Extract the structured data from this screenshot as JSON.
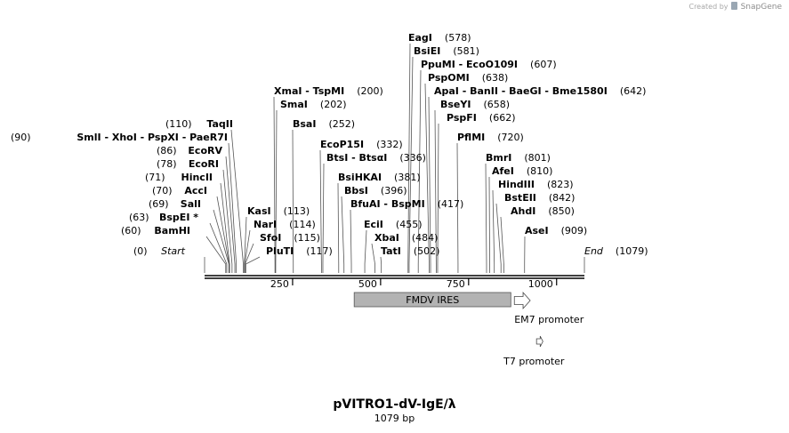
{
  "credit": {
    "prefix": "Created by",
    "brand": "SnapGene"
  },
  "plasmid": {
    "name": "pVITRO1-dV-IgE/λ",
    "length_label": "1079 bp",
    "length": 1079
  },
  "sites": [
    {
      "names": [
        "EagI"
      ],
      "pos": 578,
      "pos_label": "(578)"
    },
    {
      "names": [
        "BsiEI"
      ],
      "pos": 581,
      "pos_label": "(581)"
    },
    {
      "names": [
        "PpuMI",
        "EcoO109I"
      ],
      "pos": 607,
      "pos_label": "(607)"
    },
    {
      "names": [
        "PspOMI"
      ],
      "pos": 638,
      "pos_label": "(638)"
    },
    {
      "names": [
        "ApaI",
        "BanII",
        "BaeGI",
        "Bme1580I"
      ],
      "pos": 642,
      "pos_label": "(642)"
    },
    {
      "names": [
        "BseYI"
      ],
      "pos": 658,
      "pos_label": "(658)"
    },
    {
      "names": [
        "PspFI"
      ],
      "pos": 662,
      "pos_label": "(662)"
    },
    {
      "names": [
        "XmaI",
        "TspMI"
      ],
      "pos": 200,
      "pos_label": "(200)"
    },
    {
      "names": [
        "SmaI"
      ],
      "pos": 202,
      "pos_label": "(202)"
    },
    {
      "names": [
        "BsaI"
      ],
      "pos": 252,
      "pos_label": "(252)"
    },
    {
      "names": [
        "PflMI"
      ],
      "pos": 720,
      "pos_label": "(720)"
    },
    {
      "names": [
        "TaqII"
      ],
      "pos": 110,
      "pos_label": "(110)"
    },
    {
      "names": [
        "SmlI",
        "XhoI",
        "PspXI",
        "PaeR7I"
      ],
      "pos": 90,
      "pos_label": "(90)"
    },
    {
      "names": [
        "EcoRV"
      ],
      "pos": 86,
      "pos_label": "(86)"
    },
    {
      "names": [
        "EcoRI"
      ],
      "pos": 78,
      "pos_label": "(78)"
    },
    {
      "names": [
        "HincII"
      ],
      "pos": 71,
      "pos_label": "(71)"
    },
    {
      "names": [
        "AccI"
      ],
      "pos": 70,
      "pos_label": "(70)"
    },
    {
      "names": [
        "SalI"
      ],
      "pos": 69,
      "pos_label": "(69)"
    },
    {
      "names": [
        "BspEI *"
      ],
      "pos": 63,
      "pos_label": "(63)"
    },
    {
      "names": [
        "BamHI"
      ],
      "pos": 60,
      "pos_label": "(60)"
    },
    {
      "names": [
        "EcoP15I"
      ],
      "pos": 332,
      "pos_label": "(332)"
    },
    {
      "names": [
        "BtsI",
        "BtsαI"
      ],
      "pos": 336,
      "pos_label": "(336)"
    },
    {
      "names": [
        "BsiHKAI"
      ],
      "pos": 381,
      "pos_label": "(381)"
    },
    {
      "names": [
        "BbsI"
      ],
      "pos": 396,
      "pos_label": "(396)"
    },
    {
      "names": [
        "BfuAI",
        "BspMI"
      ],
      "pos": 417,
      "pos_label": "(417)"
    },
    {
      "names": [
        "EciI"
      ],
      "pos": 455,
      "pos_label": "(455)"
    },
    {
      "names": [
        "XbaI"
      ],
      "pos": 484,
      "pos_label": "(484)"
    },
    {
      "names": [
        "TatI"
      ],
      "pos": 502,
      "pos_label": "(502)"
    },
    {
      "names": [
        "KasI"
      ],
      "pos": 113,
      "pos_label": "(113)"
    },
    {
      "names": [
        "NarI"
      ],
      "pos": 114,
      "pos_label": "(114)"
    },
    {
      "names": [
        "SfoI"
      ],
      "pos": 115,
      "pos_label": "(115)"
    },
    {
      "names": [
        "PluTI"
      ],
      "pos": 117,
      "pos_label": "(117)"
    },
    {
      "names": [
        "BmrI"
      ],
      "pos": 801,
      "pos_label": "(801)"
    },
    {
      "names": [
        "AfeI"
      ],
      "pos": 810,
      "pos_label": "(810)"
    },
    {
      "names": [
        "HindIII"
      ],
      "pos": 823,
      "pos_label": "(823)"
    },
    {
      "names": [
        "BstEII"
      ],
      "pos": 842,
      "pos_label": "(842)"
    },
    {
      "names": [
        "AhdI"
      ],
      "pos": 850,
      "pos_label": "(850)"
    },
    {
      "names": [
        "AseI"
      ],
      "pos": 909,
      "pos_label": "(909)"
    },
    {
      "names": [
        "Start"
      ],
      "pos": 0,
      "pos_label": "(0)",
      "italic": true
    },
    {
      "names": [
        "End"
      ],
      "pos": 1079,
      "pos_label": "(1079)",
      "italic": true
    }
  ],
  "ticks": [
    {
      "pos": 250,
      "label": "250"
    },
    {
      "pos": 500,
      "label": "500"
    },
    {
      "pos": 750,
      "label": "750"
    },
    {
      "pos": 1000,
      "label": "1000"
    }
  ],
  "features": [
    {
      "name": "FMDV IRES",
      "type": "box",
      "start": 425,
      "end": 870
    },
    {
      "name": "EM7 promoter",
      "type": "arrow",
      "start": 880,
      "end": 925
    },
    {
      "name": "T7 promoter",
      "type": "arrow",
      "start": 943,
      "end": 961
    }
  ]
}
